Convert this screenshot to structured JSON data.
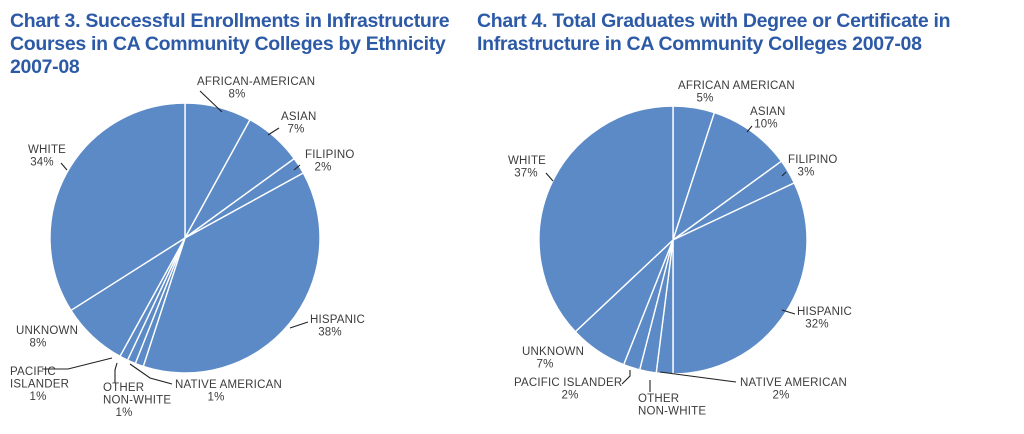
{
  "chart_data": [
    {
      "type": "pie",
      "title_lines": [
        "Chart 3. Successful Enrollments in Infrastructure",
        "Courses in CA Community Colleges by Ethnicity",
        "2007-08"
      ],
      "slice_color": "#5b8ac6",
      "slices": [
        {
          "label": [
            "AFRICAN-AMERICAN"
          ],
          "value_label": "8%",
          "value": 8
        },
        {
          "label": [
            "ASIAN"
          ],
          "value_label": "7%",
          "value": 7
        },
        {
          "label": [
            "FILIPINO"
          ],
          "value_label": "2%",
          "value": 2
        },
        {
          "label": [
            "HISPANIC"
          ],
          "value_label": "38%",
          "value": 38
        },
        {
          "label": [
            "NATIVE AMERICAN"
          ],
          "value_label": "1%",
          "value": 1
        },
        {
          "label": [
            "OTHER",
            "NON-WHITE"
          ],
          "value_label": "1%",
          "value": 1
        },
        {
          "label": [
            "PACIFIC",
            "ISLANDER"
          ],
          "value_label": "1%",
          "value": 1
        },
        {
          "label": [
            "UNKNOWN"
          ],
          "value_label": "8%",
          "value": 8
        },
        {
          "label": [
            "WHITE"
          ],
          "value_label": "34%",
          "value": 34
        }
      ]
    },
    {
      "type": "pie",
      "title_lines": [
        "Chart 4. Total Graduates with Degree or Certificate in",
        "Infrastructure in CA Community Colleges 2007-08"
      ],
      "slice_color": "#5b8ac6",
      "slices": [
        {
          "label": [
            "AFRICAN AMERICAN"
          ],
          "value_label": "5%",
          "value": 5
        },
        {
          "label": [
            "ASIAN"
          ],
          "value_label": "10%",
          "value": 10
        },
        {
          "label": [
            "FILIPINO"
          ],
          "value_label": "3%",
          "value": 3
        },
        {
          "label": [
            "HISPANIC"
          ],
          "value_label": "32%",
          "value": 32
        },
        {
          "label": [
            "NATIVE AMERICAN"
          ],
          "value_label": "2%",
          "value": 2
        },
        {
          "label": [
            "OTHER",
            "NON-WHITE"
          ],
          "value_label": "",
          "value": 2
        },
        {
          "label": [
            "PACIFIC ISLANDER"
          ],
          "value_label": "2%",
          "value": 2
        },
        {
          "label": [
            "UNKNOWN"
          ],
          "value_label": "7%",
          "value": 7
        },
        {
          "label": [
            "WHITE"
          ],
          "value_label": "37%",
          "value": 37
        }
      ]
    }
  ]
}
